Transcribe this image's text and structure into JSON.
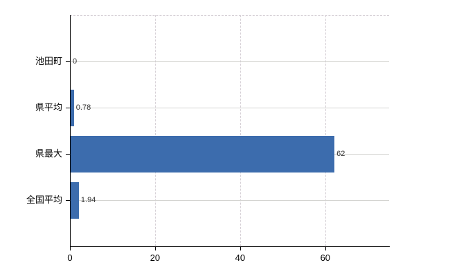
{
  "chart_data": {
    "type": "bar",
    "orientation": "horizontal",
    "title": "",
    "xlabel": "",
    "ylabel": "",
    "categories": [
      "池田町",
      "県平均",
      "県最大",
      "全国平均"
    ],
    "values": [
      0,
      0.78,
      62,
      1.94
    ],
    "value_labels": [
      "0",
      "0.78",
      "62",
      "1.94"
    ],
    "xlim": [
      0,
      75
    ],
    "xticks": [
      0,
      20,
      40,
      60
    ],
    "xticklabels": [
      "0",
      "20",
      "40",
      "60"
    ],
    "grid": true,
    "legend": false,
    "bar_color": "#3c6cad"
  },
  "colors": {
    "background": "#ffffff",
    "bar": "#3c6cad",
    "axis": "#000000",
    "grid_solid": "#d3d3d0",
    "grid_dashed": "#d6d0d6",
    "category_text": "#000000",
    "value_text": "#333333",
    "tick_text": "#000000"
  }
}
